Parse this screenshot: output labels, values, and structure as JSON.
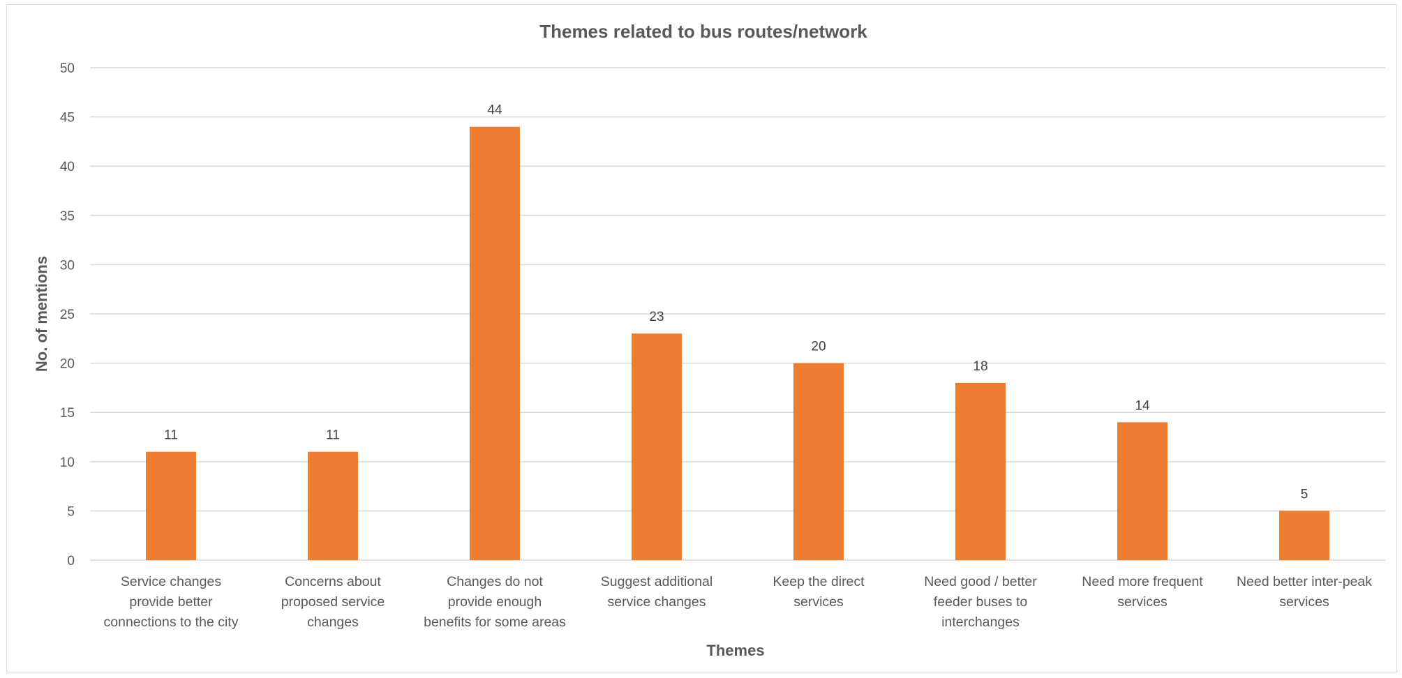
{
  "chart_data": {
    "type": "bar",
    "title": "Themes related to bus routes/network",
    "xlabel": "Themes",
    "ylabel": "No. of mentions",
    "ylim": [
      0,
      50
    ],
    "yticks": [
      0,
      5,
      10,
      15,
      20,
      25,
      30,
      35,
      40,
      45,
      50
    ],
    "grid": true,
    "legend": "none",
    "bar_color": "#ED7D31",
    "categories": [
      [
        "Service changes",
        "provide better",
        "connections to the city"
      ],
      [
        "Concerns about",
        "proposed service",
        "changes"
      ],
      [
        "Changes do not",
        "provide enough",
        "benefits for some areas"
      ],
      [
        "Suggest additional",
        "service changes"
      ],
      [
        "Keep the direct",
        "services"
      ],
      [
        "Need good / better",
        "feeder buses to",
        "interchanges"
      ],
      [
        "Need more frequent",
        "services"
      ],
      [
        "Need better inter-peak",
        "services"
      ]
    ],
    "values": [
      11,
      11,
      44,
      23,
      20,
      18,
      14,
      5
    ]
  }
}
